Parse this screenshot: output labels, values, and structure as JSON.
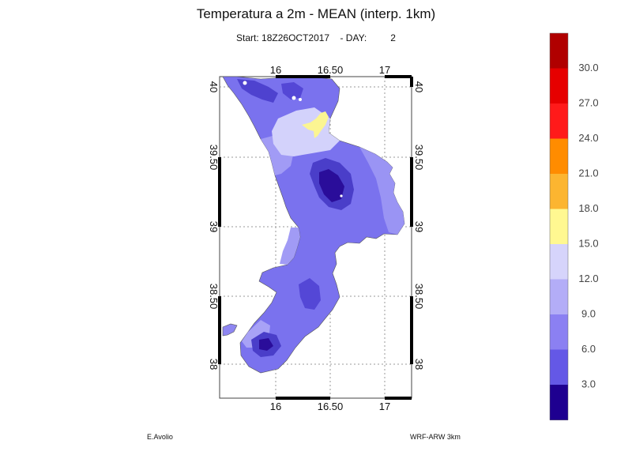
{
  "title": "Temperatura a 2m - MEAN (interp. 1km)",
  "subtitle": {
    "start_label": "Start:",
    "start_value": "18Z26OCT2017",
    "day_label": "- DAY:",
    "day_value": "2"
  },
  "map": {
    "lon_ticks_top": [
      "16",
      "16.50",
      "17"
    ],
    "lon_ticks_bottom": [
      "16",
      "16.50",
      "17"
    ],
    "lat_ticks_left": [
      "40",
      "39.50",
      "39",
      "38.50",
      "38"
    ],
    "lat_ticks_right": [
      "40",
      "39.50",
      "39",
      "38.50",
      "38"
    ],
    "land_colors": {
      "very_cold": "#23008c",
      "cold": "#5c4fd6",
      "cool": "#7a72ee",
      "mild": "#9a94f4",
      "mild_light": "#b6b2f7",
      "pale": "#d3d2fb",
      "warm": "#fbf592"
    }
  },
  "colorbar": {
    "labels": [
      "30.0",
      "27.0",
      "24.0",
      "21.0",
      "18.0",
      "15.0",
      "12.0",
      "9.0",
      "6.0",
      "3.0"
    ],
    "colors": [
      "#b00000",
      "#e60000",
      "#ff1a1a",
      "#ff8c00",
      "#fcb530",
      "#fff891",
      "#d6d4fb",
      "#b3adf7",
      "#8b80f2",
      "#6458e6",
      "#1e0090"
    ]
  },
  "footer": {
    "author": "E.Avolio",
    "model": "WRF-ARW 3km"
  }
}
